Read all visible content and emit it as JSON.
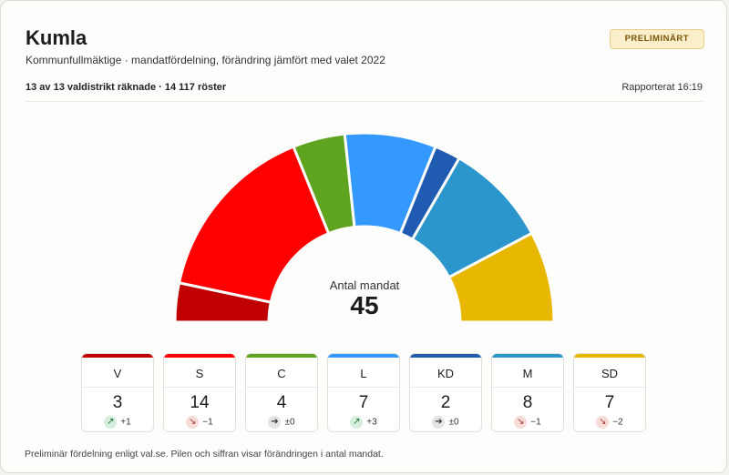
{
  "header": {
    "title": "Kumla",
    "subtitle": "Kommunfullmäktige · mandatfördelning, förändring jämfört med valet 2022",
    "badge": "PRELIMINÄRT",
    "counted": "13 av 13 valdistrikt räknade · 14 117 röster",
    "reported": "Rapporterat 16:19"
  },
  "center": {
    "label": "Antal mandat",
    "total": "45"
  },
  "footnote": "Preliminär fördelning enligt val.se. Pilen och siffran visar förändringen i antal mandat.",
  "chart_data": {
    "type": "pie",
    "subtype": "parliament-semicircle",
    "total_seats": 45,
    "parties": [
      {
        "abbr": "V",
        "seats": 3,
        "change": "+1",
        "direction": "up",
        "color": "#c00000"
      },
      {
        "abbr": "S",
        "seats": 14,
        "change": "−1",
        "direction": "down",
        "color": "#ff0000"
      },
      {
        "abbr": "C",
        "seats": 4,
        "change": "±0",
        "direction": "same",
        "color": "#5ea41e"
      },
      {
        "abbr": "L",
        "seats": 7,
        "change": "+3",
        "direction": "up",
        "color": "#3399ff"
      },
      {
        "abbr": "KD",
        "seats": 2,
        "change": "±0",
        "direction": "same",
        "color": "#1f5bb0"
      },
      {
        "abbr": "M",
        "seats": 8,
        "change": "−1",
        "direction": "down",
        "color": "#2b96cc"
      },
      {
        "abbr": "SD",
        "seats": 7,
        "change": "−2",
        "direction": "down",
        "color": "#e8b800"
      }
    ]
  }
}
